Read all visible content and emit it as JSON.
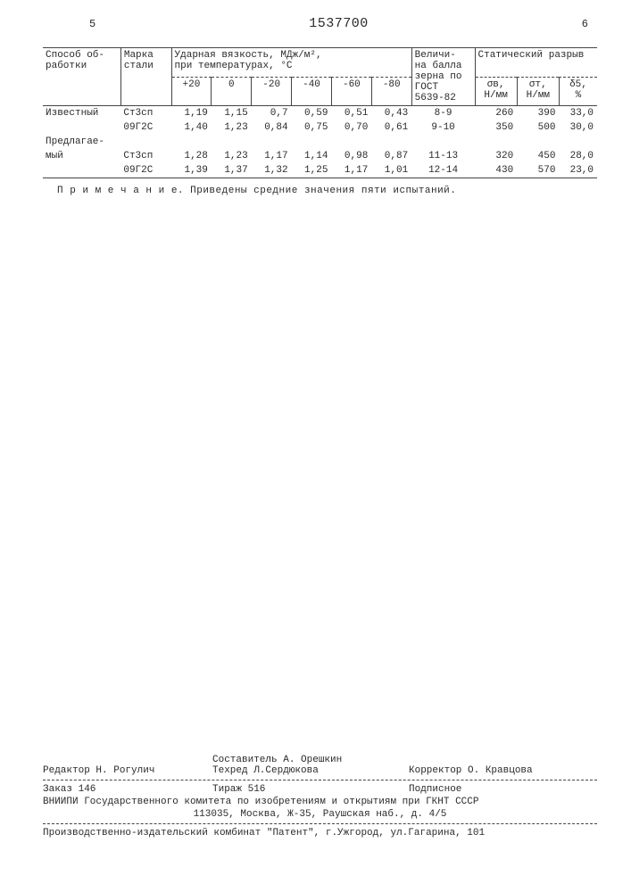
{
  "header": {
    "left_page": "5",
    "pub_number": "1537700",
    "right_page": "6"
  },
  "table": {
    "columns": {
      "method": {
        "label1": "Способ об-",
        "label2": "работки"
      },
      "steel": {
        "label1": "Марка",
        "label2": "стали"
      },
      "toughness_group": {
        "label1": "Ударная вязкость, МДж/м²,",
        "label2": "при температурах, °С"
      },
      "temps": [
        "+20",
        "0",
        "-20",
        "-40",
        "-60",
        "-80"
      ],
      "grain": {
        "label1": "Величи-",
        "label2": "на балла",
        "label3": "зерна по",
        "label4": "ГОСТ",
        "label5": "5639-82"
      },
      "static_group": {
        "label": "Статический разрыв"
      },
      "static_sub": {
        "sb": "σв,",
        "sb_u": "Н/мм",
        "st": "σт,",
        "st_u": "Н/мм",
        "s5": "δ5,",
        "s5_u": "%"
      }
    },
    "rows": [
      {
        "method": "Известный",
        "steel": "Ст3сп",
        "t": [
          "1,19",
          "1,15",
          "0,7",
          "0,59",
          "0,51",
          "0,43"
        ],
        "grain": "8-9",
        "sb": "260",
        "st": "390",
        "s5": "33,0"
      },
      {
        "method": "",
        "steel": "09Г2С",
        "t": [
          "1,40",
          "1,23",
          "0,84",
          "0,75",
          "0,70",
          "0,61"
        ],
        "grain": "9-10",
        "sb": "350",
        "st": "500",
        "s5": "30,0"
      },
      {
        "method": "Предлагае-",
        "steel": "",
        "t": [
          "",
          "",
          "",
          "",
          "",
          ""
        ],
        "grain": "",
        "sb": "",
        "st": "",
        "s5": ""
      },
      {
        "method": "мый",
        "steel": "Ст3сп",
        "t": [
          "1,28",
          "1,23",
          "1,17",
          "1,14",
          "0,98",
          "0,87"
        ],
        "grain": "11-13",
        "sb": "320",
        "st": "450",
        "s5": "28,0"
      },
      {
        "method": "",
        "steel": "09Г2С",
        "t": [
          "1,39",
          "1,37",
          "1,32",
          "1,25",
          "1,17",
          "1,01"
        ],
        "grain": "12-14",
        "sb": "430",
        "st": "570",
        "s5": "23,0"
      }
    ],
    "note": "П р и м е ч а н и е.  Приведены средние значения пяти испытаний."
  },
  "footer": {
    "compiler": "Составитель А. Орешкин",
    "editor": "Редактор Н. Рогулич",
    "techred": "Техред Л.Сердюкова",
    "corrector": "Корректор О. Кравцова",
    "order": "Заказ 146",
    "tirazh": "Тираж 516",
    "sign": "Подписное",
    "org1": "ВНИИПИ Государственного комитета по изобретениям и открытиям при ГКНТ СССР",
    "org2": "113035, Москва, Ж-35, Раушская наб., д. 4/5",
    "printer": "Производственно-издательский комбинат \"Патент\", г.Ужгород, ул.Гагарина, 101"
  }
}
